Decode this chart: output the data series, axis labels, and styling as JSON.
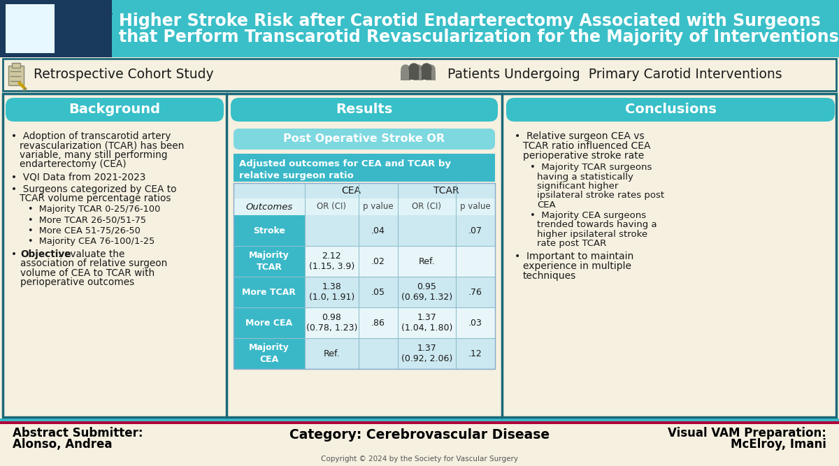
{
  "title_line1": "Higher Stroke Risk after Carotid Endarterectomy Associated with Surgeons",
  "title_line2": "that Perform Transcarotid Revascularization for the Majority of Interventions",
  "header_bg": "#3abfc8",
  "body_bg": "#e8dfc8",
  "panel_bg": "#f5f0e0",
  "teal_medium": "#38bfc8",
  "teal_light": "#7dd8e0",
  "teal_row": "#5ac8d4",
  "teal_subtitle": "#3ab8c8",
  "outline_color": "#1a6878",
  "study_type": "Retrospective Cohort Study",
  "patient_desc": "Patients Undergoing  Primary Carotid Interventions",
  "section_background": "Background",
  "section_results": "Results",
  "section_conclusions": "Conclusions",
  "table_title": "Post Operative Stroke OR",
  "table_subtitle": "Adjusted outcomes for CEA and TCAR by\nrelative surgeon ratio",
  "table_sub_headers": [
    "OR (CI)",
    "p value",
    "OR (CI)",
    "p value"
  ],
  "table_rows": [
    {
      "label": "Stroke",
      "cea_or": "",
      "cea_p": ".04",
      "tcar_or": "",
      "tcar_p": ".07"
    },
    {
      "label": "Majority\nTCAR",
      "cea_or": "2.12\n(1.15, 3.9)",
      "cea_p": ".02",
      "tcar_or": "Ref.",
      "tcar_p": ""
    },
    {
      "label": "More TCAR",
      "cea_or": "1.38\n(1.0, 1.91)",
      "cea_p": ".05",
      "tcar_or": "0.95\n(0.69, 1.32)",
      "tcar_p": ".76"
    },
    {
      "label": "More CEA",
      "cea_or": "0.98\n(0.78, 1.23)",
      "cea_p": ".86",
      "tcar_or": "1.37\n(1.04, 1.80)",
      "tcar_p": ".03"
    },
    {
      "label": "Majority\nCEA",
      "cea_or": "Ref.",
      "cea_p": "",
      "tcar_or": "1.37\n(0.92, 2.06)",
      "tcar_p": ".12"
    }
  ],
  "footer_left_label": "Abstract Submitter:",
  "footer_left_value": "Alonso, Andrea",
  "footer_center_label": "Category: Cerebrovascular Disease",
  "footer_right_label": "Visual VAM Preparation:",
  "footer_right_value": "McElroy, Imani",
  "footer_border_teal": "#3ab8c8",
  "footer_border_red": "#b0003a",
  "copyright": "Copyright © 2024 by the Society for Vascular Surgery"
}
